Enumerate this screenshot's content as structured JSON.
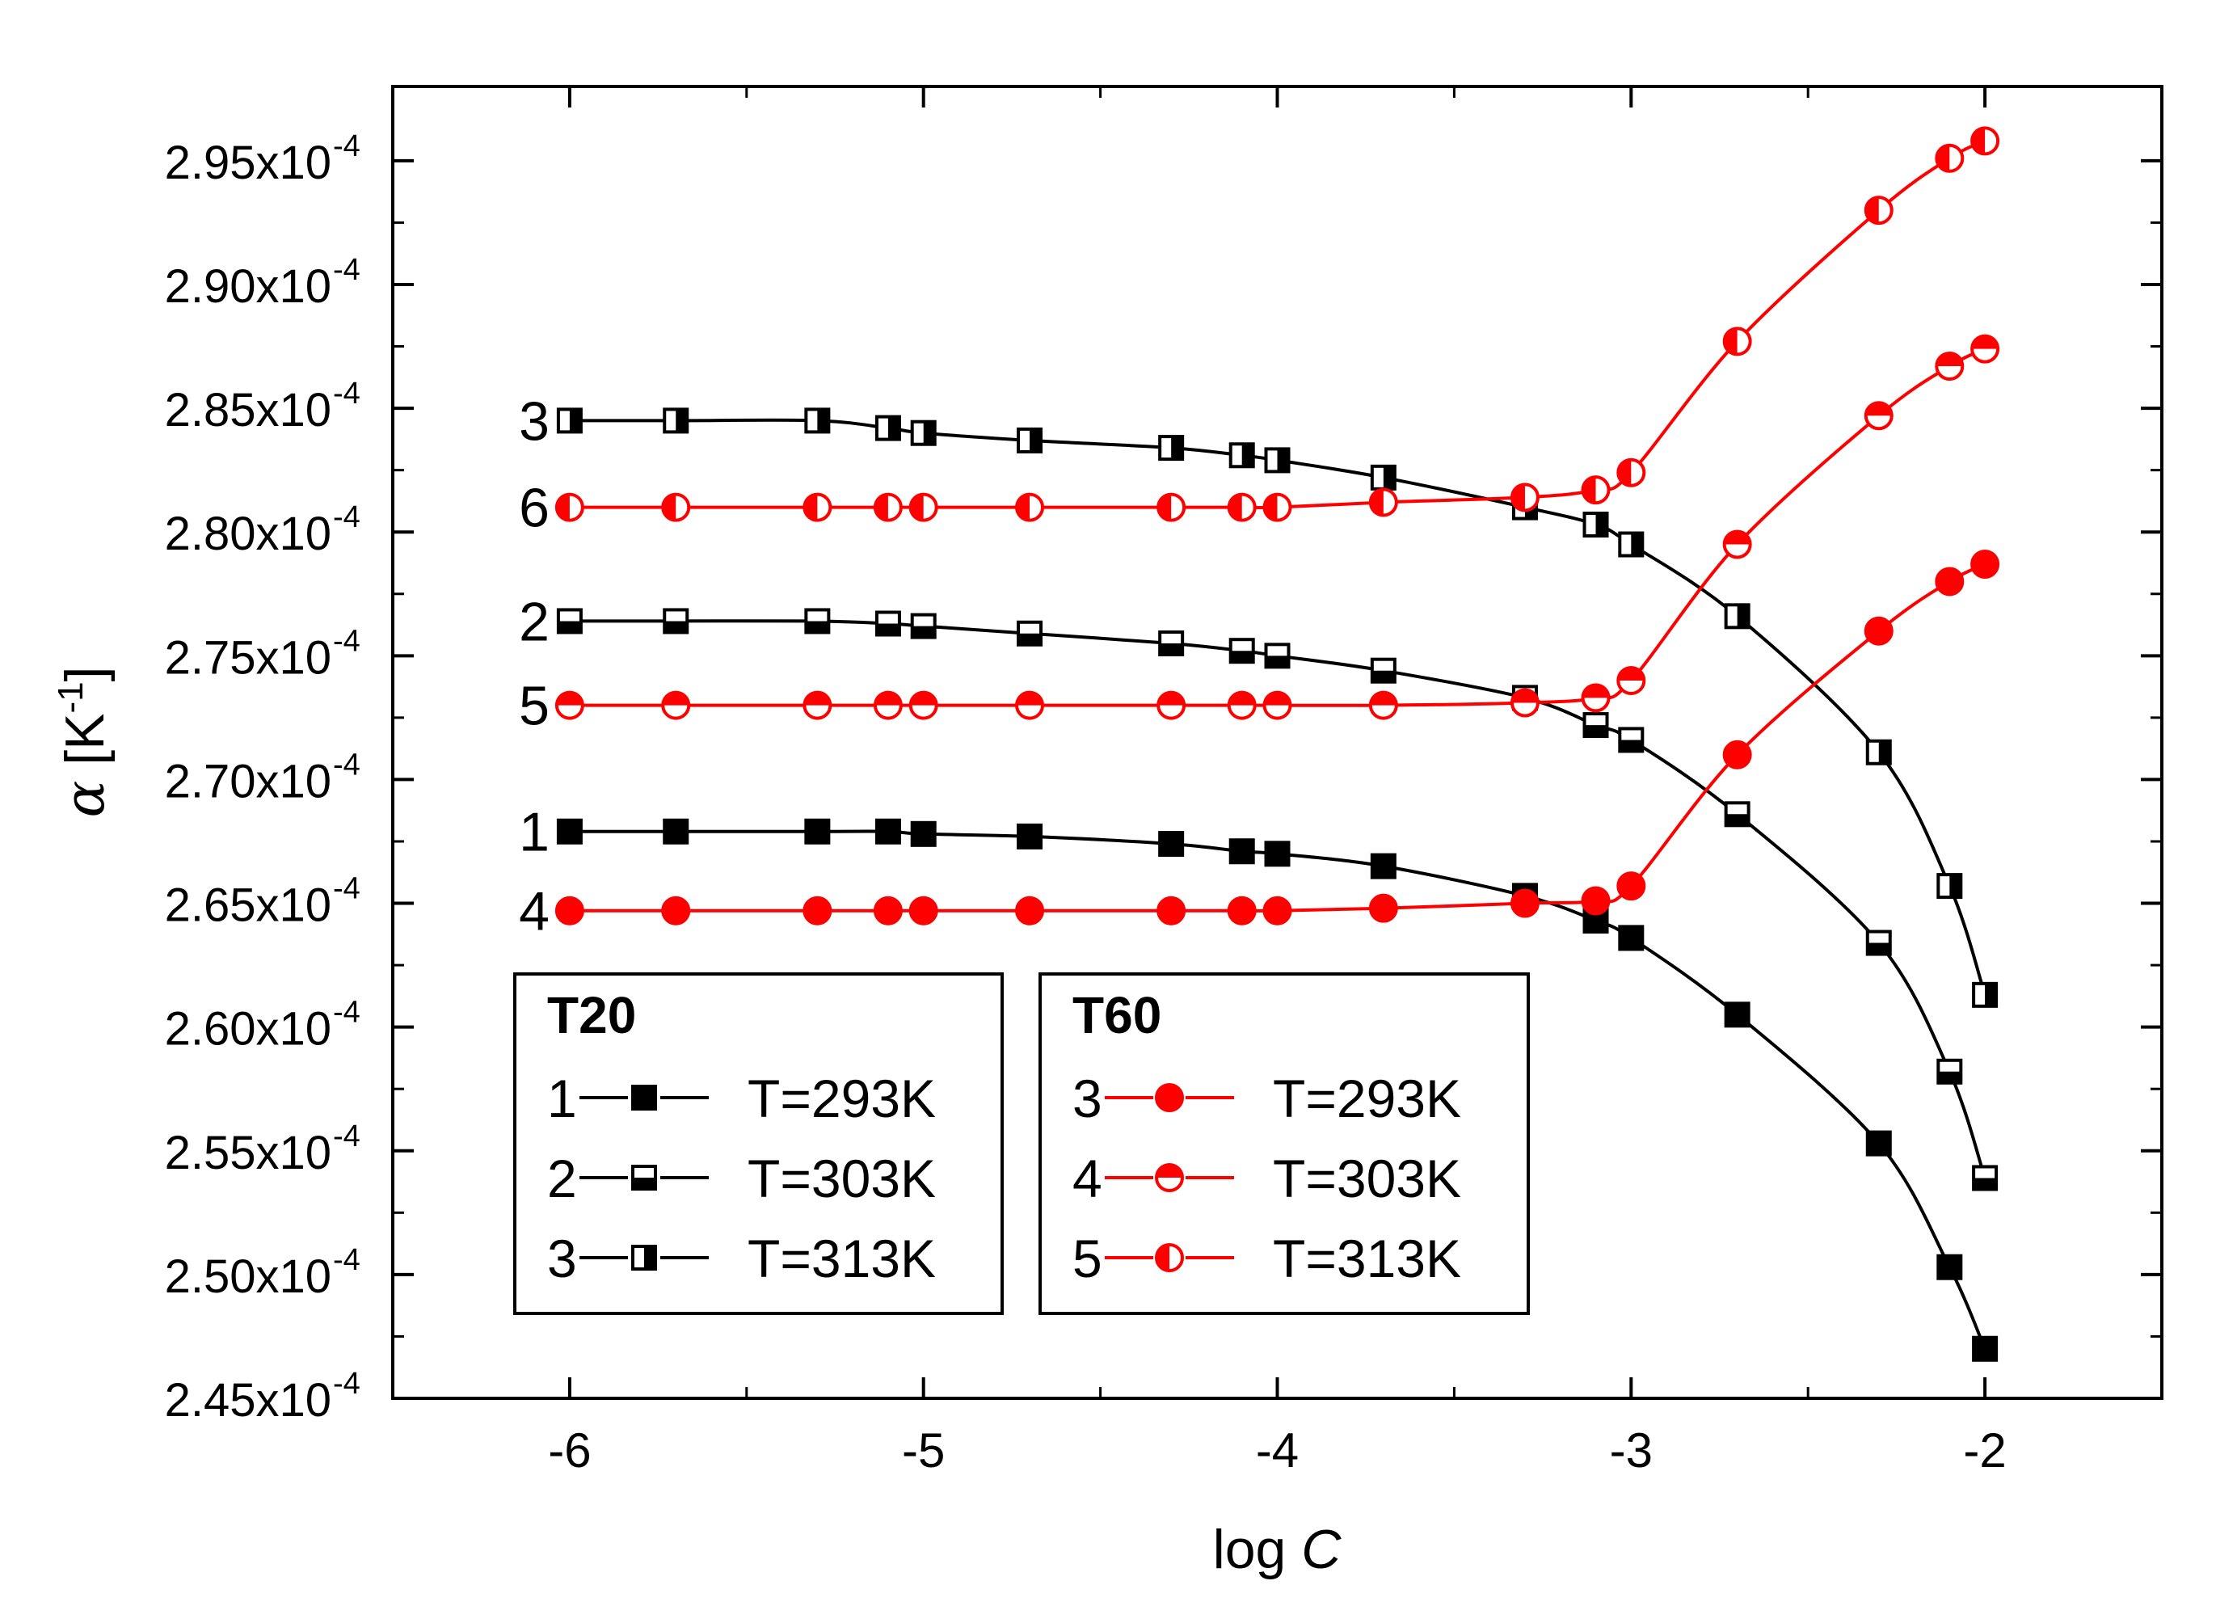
{
  "chart_data": {
    "type": "line",
    "title": "",
    "xlabel": {
      "main": "log ",
      "italic": "C"
    },
    "ylabel": {
      "symbol": "α",
      "unit_pre": " [K",
      "unit_sup": "-1",
      "unit_post": "]"
    },
    "xlim": [
      -6.5,
      -1.5
    ],
    "ylim": [
      0.000245,
      0.000298
    ],
    "xticks": [
      -6,
      -5,
      -4,
      -3,
      -2
    ],
    "xtick_labels": [
      "-6",
      "-5",
      "-4",
      "-3",
      "-2"
    ],
    "yticks": [
      0.000245,
      0.00025,
      0.000255,
      0.00026,
      0.000265,
      0.00027,
      0.000275,
      0.00028,
      0.000285,
      0.00029,
      0.000295
    ],
    "ytick_labels": [
      "2.45x10",
      "2.50x10",
      "2.55x10",
      "2.60x10",
      "2.65x10",
      "2.70x10",
      "2.75x10",
      "2.80x10",
      "2.85x10",
      "2.90x10",
      "2.95x10"
    ],
    "ytick_exponent": "-4",
    "x": [
      -6,
      -5.7,
      -5.3,
      -5.1,
      -5,
      -4.7,
      -4.3,
      -4.1,
      -4,
      -3.7,
      -3.3,
      -3.1,
      -3,
      -2.7,
      -2.3,
      -2.1,
      -2
    ],
    "series": [
      {
        "id": "1",
        "label": "1",
        "name": "T20 T=293K",
        "color": "#000000",
        "marker": "square",
        "fill": "full",
        "values": [
          0.0002679,
          0.0002679,
          0.0002679,
          0.0002679,
          0.0002678,
          0.0002677,
          0.0002674,
          0.0002671,
          0.000267,
          0.0002665,
          0.0002653,
          0.0002643,
          0.0002636,
          0.0002605,
          0.0002553,
          0.0002503,
          0.000247
        ]
      },
      {
        "id": "2",
        "label": "2",
        "name": "T20 T=303K",
        "color": "#000000",
        "marker": "square",
        "fill": "bottom",
        "values": [
          0.0002764,
          0.0002764,
          0.0002764,
          0.0002763,
          0.0002762,
          0.0002759,
          0.0002755,
          0.0002752,
          0.000275,
          0.0002744,
          0.0002733,
          0.0002722,
          0.0002716,
          0.0002686,
          0.0002634,
          0.0002582,
          0.0002539
        ]
      },
      {
        "id": "3",
        "label": "3",
        "name": "T20 T=313K",
        "color": "#000000",
        "marker": "square",
        "fill": "right",
        "values": [
          0.0002845,
          0.0002845,
          0.0002845,
          0.0002842,
          0.000284,
          0.0002837,
          0.0002834,
          0.0002831,
          0.0002829,
          0.0002822,
          0.000281,
          0.0002803,
          0.0002795,
          0.0002766,
          0.0002711,
          0.0002657,
          0.0002613
        ]
      },
      {
        "id": "4",
        "label": "4",
        "name": "T60 T=293K",
        "color": "#ff0000",
        "marker": "circle",
        "fill": "full",
        "values": [
          0.0002647,
          0.0002647,
          0.0002647,
          0.0002647,
          0.0002647,
          0.0002647,
          0.0002647,
          0.0002647,
          0.0002647,
          0.0002648,
          0.000265,
          0.0002651,
          0.0002657,
          0.000271,
          0.000276,
          0.000278,
          0.0002787
        ]
      },
      {
        "id": "5",
        "label": "5",
        "name": "T60 T=303K",
        "color": "#ff0000",
        "marker": "circle",
        "fill": "top",
        "values": [
          0.000273,
          0.000273,
          0.000273,
          0.000273,
          0.000273,
          0.000273,
          0.000273,
          0.000273,
          0.000273,
          0.000273,
          0.0002731,
          0.0002733,
          0.000274,
          0.0002795,
          0.0002847,
          0.0002867,
          0.0002874
        ]
      },
      {
        "id": "6",
        "label": "6",
        "name": "T60 T=313K",
        "color": "#ff0000",
        "marker": "circle",
        "fill": "left",
        "values": [
          0.000281,
          0.000281,
          0.000281,
          0.000281,
          0.000281,
          0.000281,
          0.000281,
          0.000281,
          0.000281,
          0.0002812,
          0.0002814,
          0.0002817,
          0.0002824,
          0.0002877,
          0.000293,
          0.0002951,
          0.0002958
        ]
      }
    ],
    "legend": [
      {
        "title": "T20",
        "position": "bottom-left",
        "entries": [
          {
            "num": "1",
            "label": "T=293K",
            "series": "1"
          },
          {
            "num": "2",
            "label": "T=303K",
            "series": "2"
          },
          {
            "num": "3",
            "label": "T=313K",
            "series": "3"
          }
        ]
      },
      {
        "title": "T60",
        "position": "bottom-center",
        "entries": [
          {
            "num": "3",
            "label": "T=293K",
            "series": "4"
          },
          {
            "num": "4",
            "label": "T=303K",
            "series": "5"
          },
          {
            "num": "5",
            "label": "T=313K",
            "series": "6"
          }
        ]
      }
    ]
  }
}
